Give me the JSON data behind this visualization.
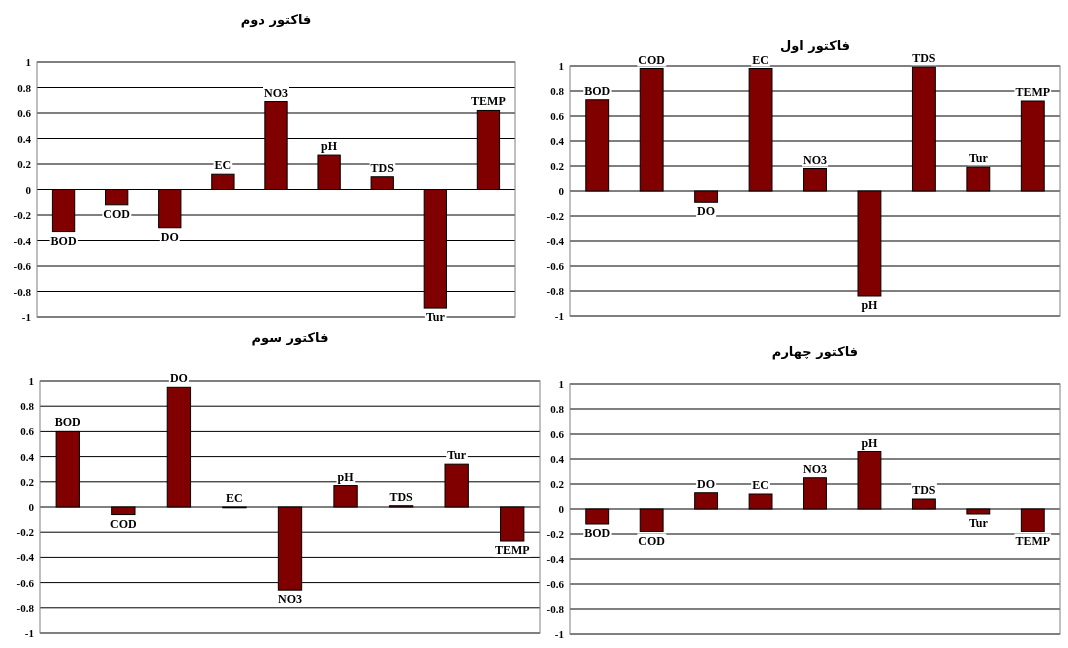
{
  "chart_data": [
    {
      "type": "bar",
      "title": "فاکتور دوم",
      "categories": [
        "BOD",
        "COD",
        "DO",
        "EC",
        "NO3",
        "pH",
        "TDS",
        "Tur",
        "TEMP"
      ],
      "color": "#800000",
      "values": [
        -0.33,
        -0.12,
        -0.3,
        0.12,
        0.69,
        0.27,
        0.1,
        -0.93,
        0.62
      ],
      "ylim": [
        -1,
        1
      ],
      "yticks": [
        {
          "value": -1,
          "label": "-1"
        },
        {
          "value": -0.8,
          "label": "-0.8"
        },
        {
          "value": -0.6,
          "label": "-0.6"
        },
        {
          "value": -0.4,
          "label": "-0.4"
        },
        {
          "value": -0.2,
          "label": "-0.2"
        },
        0,
        0.2,
        0.4,
        0.6,
        0.8,
        1
      ],
      "grid": "y"
    },
    {
      "type": "bar",
      "title": "فاکتور اول",
      "categories": [
        "BOD",
        "COD",
        "DO",
        "EC",
        "NO3",
        "pH",
        "TDS",
        "Tur",
        "TEMP"
      ],
      "color": "#800000",
      "values": [
        0.73,
        0.98,
        -0.09,
        0.98,
        0.18,
        -0.84,
        0.99,
        0.19,
        0.72
      ],
      "ylim": [
        -1,
        1
      ],
      "yticks": [
        {
          "value": -1,
          "label": "-1"
        },
        {
          "value": -0.8,
          "label": "-0.8"
        },
        {
          "value": -0.6,
          "label": "-0.6"
        },
        {
          "value": -0.4,
          "label": "-0.4"
        },
        {
          "value": -0.2,
          "label": "-0.2"
        },
        0,
        0.2,
        0.4,
        0.6,
        0.8,
        1
      ],
      "grid": "y"
    },
    {
      "type": "bar",
      "title": "فاکتور سوم",
      "categories": [
        "BOD",
        "COD",
        "DO",
        "EC",
        "NO3",
        "pH",
        "TDS",
        "Tur",
        "TEMP"
      ],
      "color": "#800000",
      "values": [
        0.6,
        -0.06,
        0.95,
        0.0,
        -0.66,
        0.17,
        0.01,
        0.34,
        -0.27
      ],
      "ylim": [
        -1,
        1
      ],
      "yticks": [
        {
          "value": -1,
          "label": "-1"
        },
        {
          "value": -0.8,
          "label": "-0.8"
        },
        {
          "value": -0.6,
          "label": "-0.6"
        },
        {
          "value": -0.4,
          "label": "-0.4"
        },
        {
          "value": -0.2,
          "label": "-0.2"
        },
        0,
        0.2,
        0.4,
        0.6,
        0.8,
        1
      ],
      "grid": "y"
    },
    {
      "type": "bar",
      "title": "فاکتور چهارم",
      "categories": [
        "BOD",
        "COD",
        "DO",
        "EC",
        "NO3",
        "pH",
        "TDS",
        "Tur",
        "TEMP"
      ],
      "color": "#800000",
      "values": [
        -0.12,
        -0.18,
        0.13,
        0.12,
        0.25,
        0.46,
        0.08,
        -0.04,
        -0.18
      ],
      "ylim": [
        -1,
        1
      ],
      "yticks": [
        {
          "value": -1,
          "label": "-1"
        },
        {
          "value": -0.8,
          "label": "-0.8"
        },
        {
          "value": -0.6,
          "label": "-0.6"
        },
        {
          "value": -0.4,
          "label": "-0.4"
        },
        {
          "value": -0.2,
          "label": "-0.2"
        },
        0,
        0.2,
        0.4,
        0.6,
        0.8,
        1
      ],
      "grid": "y"
    }
  ]
}
